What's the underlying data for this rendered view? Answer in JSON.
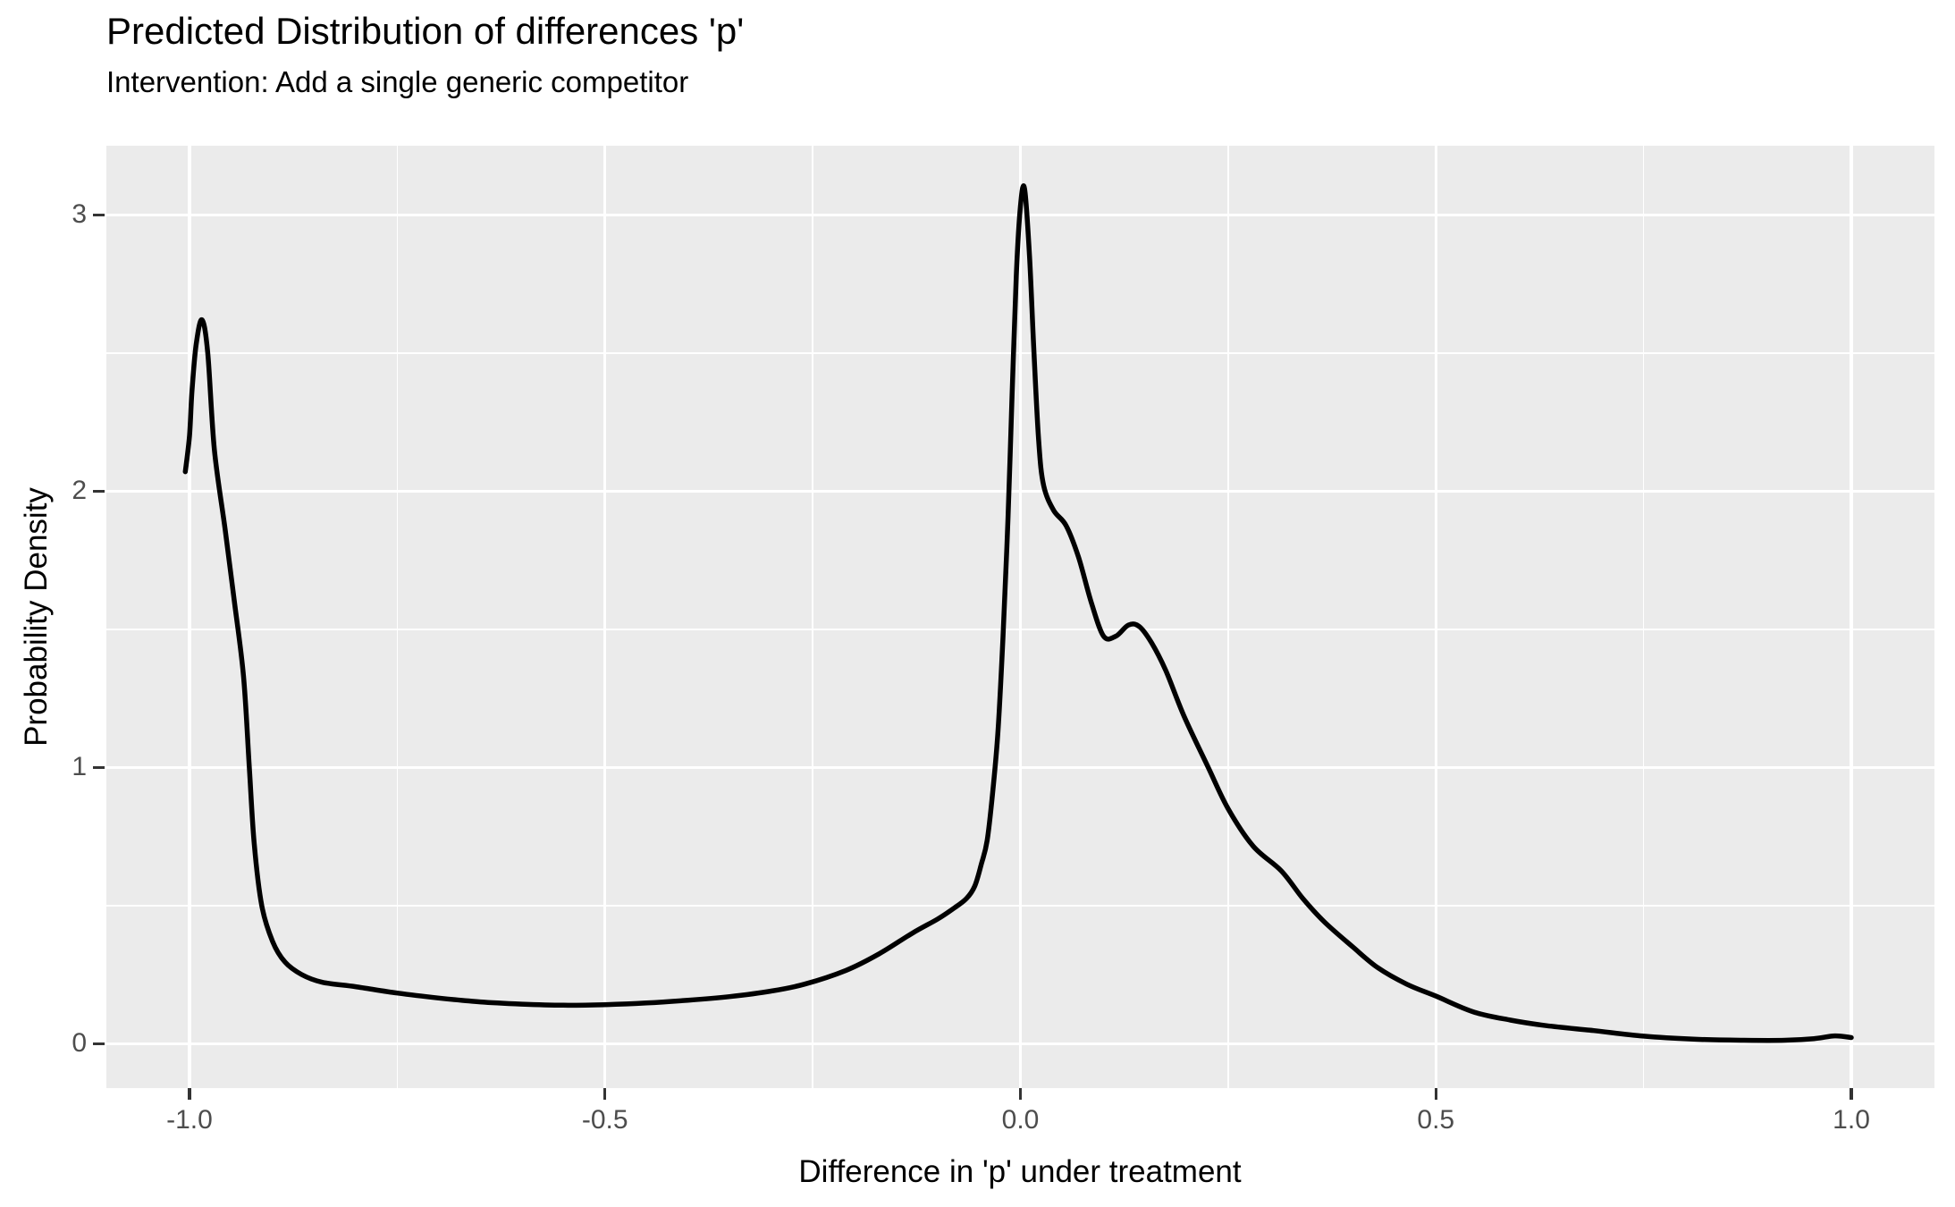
{
  "title": "Predicted Distribution of differences 'p'",
  "subtitle": "Intervention: Add a single generic competitor",
  "chart_data": {
    "type": "line",
    "title": "Predicted Distribution of differences 'p'",
    "subtitle": "Intervention: Add a single generic competitor",
    "xlabel": "Difference in 'p' under treatment",
    "ylabel": "Probability Density",
    "legend": "none",
    "grid": "white major and minor gridlines on gray panel",
    "panel_bg_color": "#EBEBEB",
    "grid_color": "#FFFFFF",
    "line_color": "#000000",
    "axis_text_color": "#4D4D4D",
    "tick_mark_color": "#333333",
    "xlim": [
      -1.1,
      1.1
    ],
    "ylim": [
      -0.161,
      3.25
    ],
    "x_ticks": [
      -1.0,
      -0.5,
      0.0,
      0.5,
      1.0
    ],
    "x_tick_labels": [
      "-1.0",
      "-0.5",
      "0.0",
      "0.5",
      "1.0"
    ],
    "x_minor_ticks": [
      -0.75,
      -0.25,
      0.25,
      0.75
    ],
    "y_ticks": [
      0,
      1,
      2,
      3
    ],
    "y_tick_labels": [
      "0",
      "1",
      "2",
      "3"
    ],
    "y_minor_ticks": [
      0.5,
      1.5,
      2.5
    ],
    "series": [
      {
        "name": "density",
        "points": [
          [
            -1.005,
            2.07
          ],
          [
            -1.0,
            2.2
          ],
          [
            -0.997,
            2.36
          ],
          [
            -0.992,
            2.53
          ],
          [
            -0.985,
            2.62
          ],
          [
            -0.978,
            2.5
          ],
          [
            -0.97,
            2.15
          ],
          [
            -0.957,
            1.86
          ],
          [
            -0.946,
            1.6
          ],
          [
            -0.935,
            1.33
          ],
          [
            -0.928,
            1.0
          ],
          [
            -0.922,
            0.72
          ],
          [
            -0.913,
            0.5
          ],
          [
            -0.9,
            0.37
          ],
          [
            -0.885,
            0.295
          ],
          [
            -0.865,
            0.25
          ],
          [
            -0.84,
            0.222
          ],
          [
            -0.8,
            0.206
          ],
          [
            -0.75,
            0.183
          ],
          [
            -0.7,
            0.165
          ],
          [
            -0.65,
            0.151
          ],
          [
            -0.6,
            0.143
          ],
          [
            -0.55,
            0.139
          ],
          [
            -0.5,
            0.141
          ],
          [
            -0.45,
            0.147
          ],
          [
            -0.4,
            0.157
          ],
          [
            -0.35,
            0.17
          ],
          [
            -0.3,
            0.19
          ],
          [
            -0.26,
            0.215
          ],
          [
            -0.21,
            0.265
          ],
          [
            -0.17,
            0.325
          ],
          [
            -0.13,
            0.4
          ],
          [
            -0.1,
            0.45
          ],
          [
            -0.08,
            0.49
          ],
          [
            -0.065,
            0.525
          ],
          [
            -0.055,
            0.57
          ],
          [
            -0.047,
            0.65
          ],
          [
            -0.04,
            0.735
          ],
          [
            -0.033,
            0.92
          ],
          [
            -0.027,
            1.13
          ],
          [
            -0.021,
            1.47
          ],
          [
            -0.015,
            1.9
          ],
          [
            -0.01,
            2.35
          ],
          [
            -0.005,
            2.78
          ],
          [
            0.0,
            3.03
          ],
          [
            0.005,
            3.095
          ],
          [
            0.011,
            2.85
          ],
          [
            0.016,
            2.52
          ],
          [
            0.022,
            2.18
          ],
          [
            0.028,
            2.02
          ],
          [
            0.04,
            1.93
          ],
          [
            0.055,
            1.875
          ],
          [
            0.07,
            1.76
          ],
          [
            0.085,
            1.6
          ],
          [
            0.1,
            1.475
          ],
          [
            0.115,
            1.475
          ],
          [
            0.13,
            1.515
          ],
          [
            0.143,
            1.51
          ],
          [
            0.158,
            1.45
          ],
          [
            0.175,
            1.35
          ],
          [
            0.197,
            1.185
          ],
          [
            0.226,
            1.0
          ],
          [
            0.25,
            0.85
          ],
          [
            0.28,
            0.715
          ],
          [
            0.314,
            0.625
          ],
          [
            0.34,
            0.525
          ],
          [
            0.366,
            0.44
          ],
          [
            0.4,
            0.35
          ],
          [
            0.43,
            0.275
          ],
          [
            0.465,
            0.215
          ],
          [
            0.5,
            0.172
          ],
          [
            0.545,
            0.115
          ],
          [
            0.59,
            0.085
          ],
          [
            0.633,
            0.065
          ],
          [
            0.69,
            0.047
          ],
          [
            0.75,
            0.027
          ],
          [
            0.81,
            0.016
          ],
          [
            0.87,
            0.012
          ],
          [
            0.92,
            0.012
          ],
          [
            0.955,
            0.018
          ],
          [
            0.98,
            0.028
          ],
          [
            1.0,
            0.022
          ]
        ]
      }
    ]
  }
}
